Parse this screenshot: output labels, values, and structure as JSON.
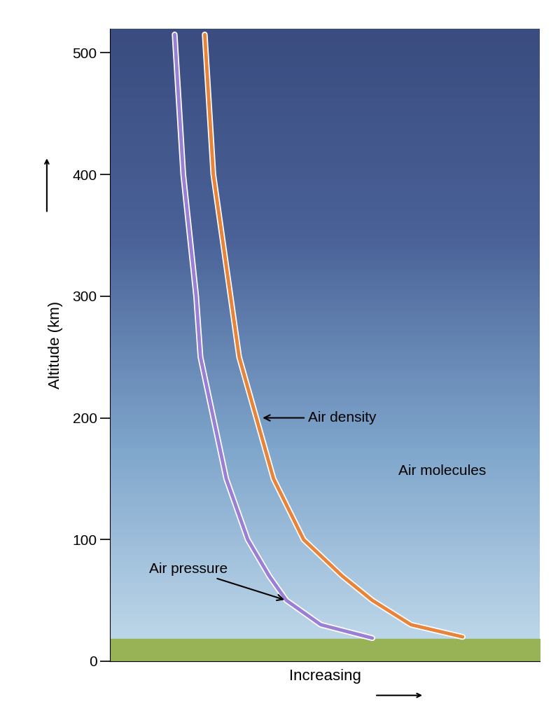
{
  "chart_data": {
    "type": "line",
    "x_label": "Increasing",
    "y_label": "Altitude (km)",
    "series": [
      {
        "name": "Air pressure",
        "color": "#9a7fd6",
        "x": [
          0.61,
          0.49,
          0.41,
          0.37,
          0.32,
          0.27,
          0.24,
          0.21,
          0.2,
          0.17,
          0.15
        ],
        "values": [
          19,
          30,
          50,
          70,
          100,
          150,
          200,
          250,
          300,
          400,
          515
        ]
      },
      {
        "name": "Air density",
        "color": "#e8843a",
        "x": [
          0.82,
          0.7,
          0.61,
          0.54,
          0.45,
          0.38,
          0.34,
          0.3,
          0.28,
          0.24,
          0.22
        ],
        "values": [
          20,
          30,
          50,
          70,
          100,
          150,
          200,
          250,
          300,
          400,
          515
        ]
      }
    ],
    "annotations": [
      {
        "text": "Air molecules"
      }
    ],
    "xlim": [
      0,
      1
    ],
    "ylim": [
      0,
      520
    ],
    "yticks": [
      0,
      100,
      200,
      300,
      400,
      500
    ],
    "tick_labels": "y",
    "grid": false
  }
}
